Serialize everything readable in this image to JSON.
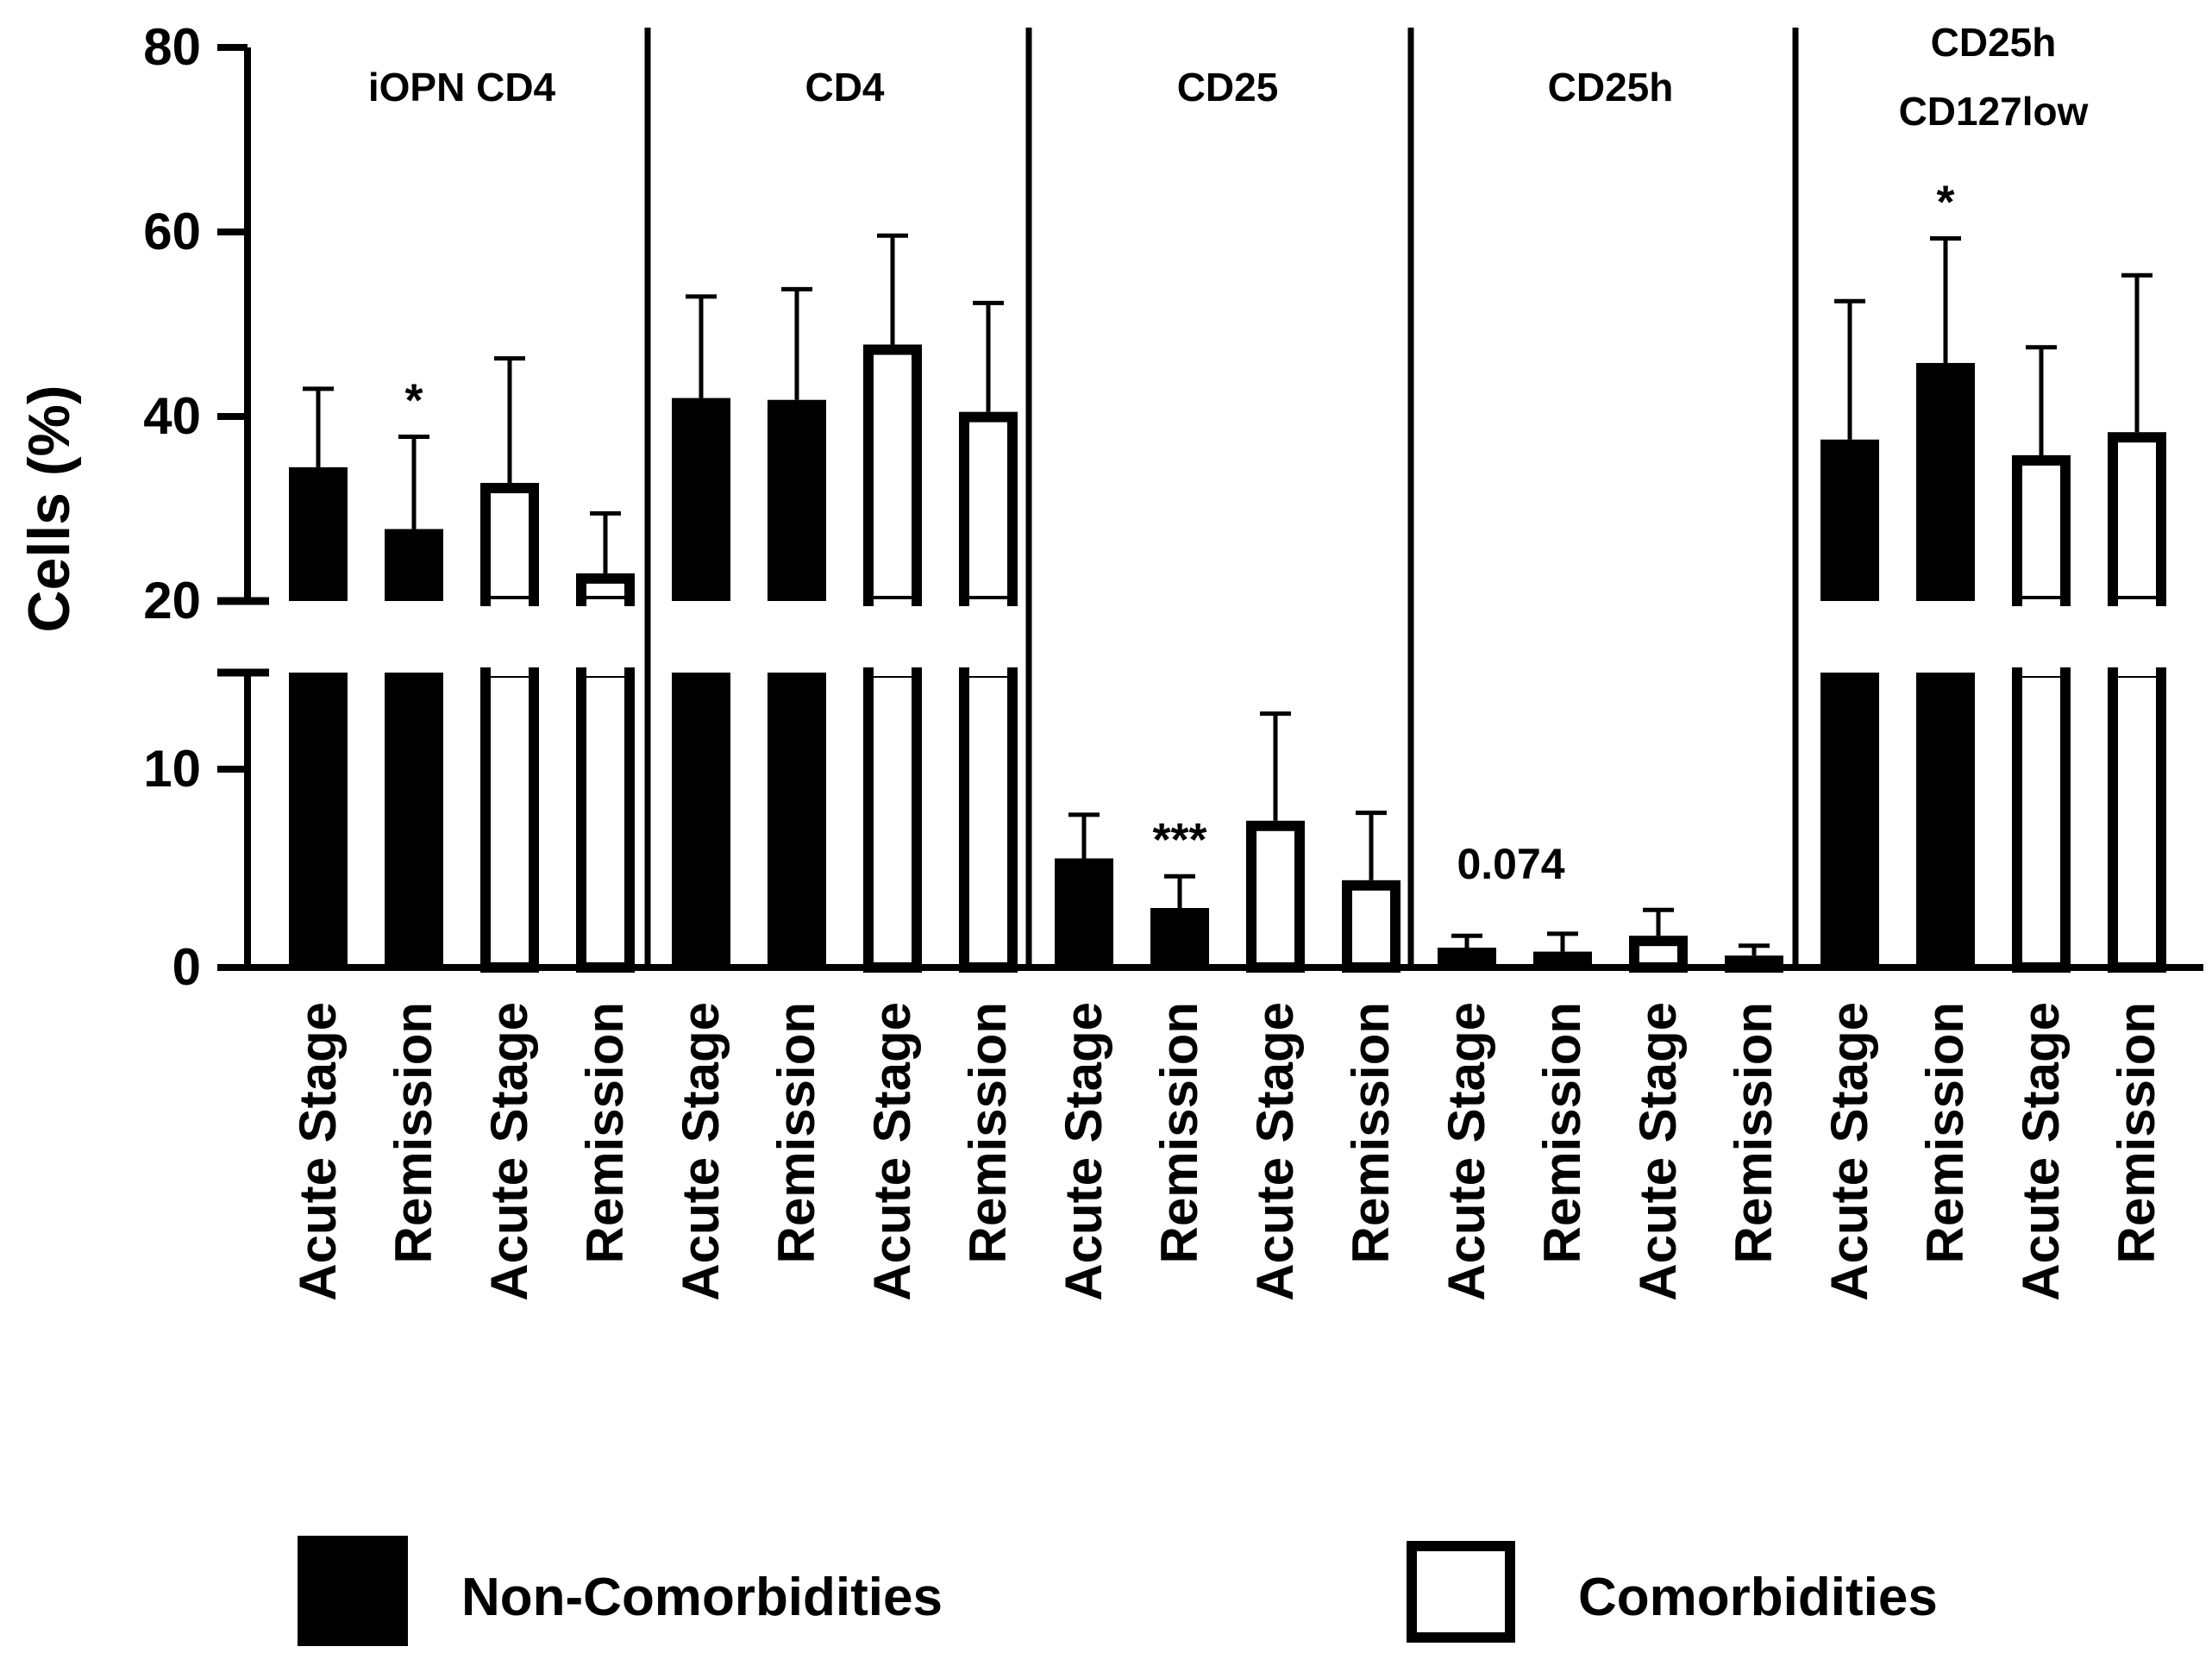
{
  "chart_data": {
    "type": "bar",
    "ylabel": "Cells (%)",
    "xlabel": "",
    "y_axis": {
      "break": true,
      "lower_range": [
        0,
        15
      ],
      "upper_range": [
        20,
        80
      ],
      "lower_ticks": [
        0,
        10
      ],
      "upper_ticks": [
        20,
        40,
        60,
        80
      ]
    },
    "groups": [
      {
        "title": "iOPN CD4",
        "bars": [
          {
            "category": "Acute Stage",
            "series": "Non-Comorbidities",
            "value": 34.5,
            "error": 8.5
          },
          {
            "category": "Remission",
            "series": "Non-Comorbidities",
            "value": 27.8,
            "error": 10.0
          },
          {
            "category": "Acute Stage",
            "series": "Comorbidities",
            "value": 32.8,
            "error": 13.5
          },
          {
            "category": "Remission",
            "series": "Comorbidities",
            "value": 23.0,
            "error": 6.5
          }
        ],
        "annotations": [
          {
            "text": "*",
            "bar_index": 1
          }
        ]
      },
      {
        "title": "CD4",
        "bars": [
          {
            "category": "Acute Stage",
            "series": "Non-Comorbidities",
            "value": 42.0,
            "error": 11.0
          },
          {
            "category": "Remission",
            "series": "Non-Comorbidities",
            "value": 41.8,
            "error": 12.0
          },
          {
            "category": "Acute Stage",
            "series": "Comorbidities",
            "value": 47.8,
            "error": 11.8
          },
          {
            "category": "Remission",
            "series": "Comorbidities",
            "value": 40.5,
            "error": 11.8
          }
        ],
        "annotations": []
      },
      {
        "title": "CD25",
        "bars": [
          {
            "category": "Acute Stage",
            "series": "Non-Comorbidities",
            "value": 5.5,
            "error": 2.2
          },
          {
            "category": "Remission",
            "series": "Non-Comorbidities",
            "value": 3.0,
            "error": 1.6
          },
          {
            "category": "Acute Stage",
            "series": "Comorbidities",
            "value": 7.4,
            "error": 5.4
          },
          {
            "category": "Remission",
            "series": "Comorbidities",
            "value": 4.4,
            "error": 3.4
          }
        ],
        "annotations": [
          {
            "text": "***",
            "bar_index": 1
          }
        ]
      },
      {
        "title": "CD25h",
        "bars": [
          {
            "category": "Acute Stage",
            "series": "Non-Comorbidities",
            "value": 1.0,
            "error": 0.6
          },
          {
            "category": "Remission",
            "series": "Non-Comorbidities",
            "value": 0.8,
            "error": 0.9
          },
          {
            "category": "Acute Stage",
            "series": "Comorbidities",
            "value": 1.6,
            "error": 1.3
          },
          {
            "category": "Remission",
            "series": "Comorbidities",
            "value": 0.6,
            "error": 0.5
          }
        ],
        "annotations": [
          {
            "text": "0.074",
            "bar_index": 1
          }
        ]
      },
      {
        "title": "CD25h\nCD127low",
        "bars": [
          {
            "category": "Acute Stage",
            "series": "Non-Comorbidities",
            "value": 37.5,
            "error": 15.0
          },
          {
            "category": "Remission",
            "series": "Non-Comorbidities",
            "value": 45.8,
            "error": 13.5
          },
          {
            "category": "Acute Stage",
            "series": "Comorbidities",
            "value": 35.8,
            "error": 11.7
          },
          {
            "category": "Remission",
            "series": "Comorbidities",
            "value": 38.3,
            "error": 17.0
          }
        ],
        "annotations": [
          {
            "text": "*",
            "bar_index": 1
          }
        ]
      }
    ],
    "series": [
      {
        "name": "Non-Comorbidities",
        "fill": "#000000"
      },
      {
        "name": "Comorbidities",
        "fill": "#ffffff"
      }
    ],
    "legend": {
      "placement": "bottom",
      "entries": [
        "Non-Comorbidities",
        "Comorbidities"
      ]
    }
  }
}
